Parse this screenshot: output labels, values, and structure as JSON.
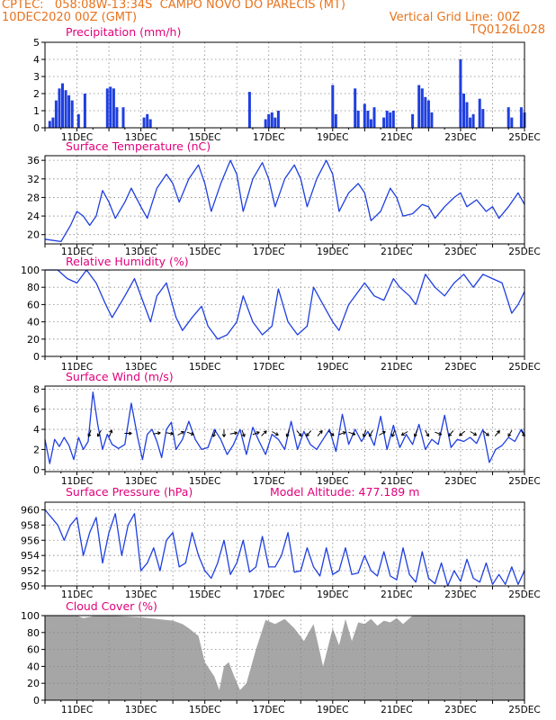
{
  "header": {
    "line1": "CPTEC:   058:08W-13:34S  CAMPO NOVO DO PARECIS (MT)",
    "line2_left": "10DEC2020 00Z (GMT)",
    "line2_right": "Vertical Grid Line: 00Z",
    "line3_right": "TQ0126L028"
  },
  "colors": {
    "header": "#e8731e",
    "title": "#e0007a",
    "series": "#1f3fe0",
    "cloud": "#a6a6a6",
    "arrow": "#000000"
  },
  "x_labels": [
    "11DEC",
    "13DEC",
    "15DEC",
    "17DEC",
    "19DEC",
    "21DEC",
    "23DEC",
    "25DEC"
  ],
  "chart_data": [
    {
      "id": "precip",
      "type": "bar",
      "title": "Precipitation (mm/h)",
      "x_unit": "days from 10DEC2020 00Z",
      "xlim": [
        0,
        15
      ],
      "ylim": [
        0,
        5
      ],
      "yticks": [
        0,
        1,
        2,
        3,
        4,
        5
      ],
      "x": [
        0.15,
        0.25,
        0.35,
        0.45,
        0.55,
        0.65,
        0.75,
        0.85,
        1.05,
        1.25,
        1.95,
        2.05,
        2.15,
        2.25,
        2.45,
        3.1,
        3.2,
        3.3,
        6.4,
        6.9,
        7.0,
        7.1,
        7.2,
        7.3,
        9.0,
        9.1,
        9.7,
        9.8,
        10.0,
        10.1,
        10.2,
        10.3,
        10.6,
        10.7,
        10.8,
        10.9,
        11.5,
        11.7,
        11.8,
        11.9,
        12.0,
        12.1,
        13.0,
        13.1,
        13.2,
        13.3,
        13.4,
        13.6,
        13.7,
        14.5,
        14.6,
        14.9,
        15.0
      ],
      "values": [
        0.4,
        0.6,
        1.6,
        2.3,
        2.6,
        2.2,
        1.9,
        1.6,
        0.8,
        2.0,
        2.3,
        2.4,
        2.3,
        1.2,
        1.2,
        0.6,
        0.8,
        0.5,
        2.1,
        0.5,
        0.8,
        0.9,
        0.6,
        1.0,
        2.5,
        0.8,
        2.3,
        1.0,
        1.4,
        1.0,
        0.5,
        1.2,
        0.6,
        1.0,
        0.9,
        1.0,
        0.8,
        2.5,
        2.3,
        1.8,
        1.6,
        0.9,
        4.0,
        2.0,
        1.5,
        0.6,
        0.8,
        1.7,
        1.1,
        1.2,
        0.6,
        1.2,
        0.9
      ]
    },
    {
      "id": "temp",
      "type": "line",
      "title": "Surface Temperature (nC)",
      "x_unit": "days from 10DEC2020 00Z",
      "xlim": [
        0,
        15
      ],
      "ylim": [
        18,
        37
      ],
      "yticks": [
        20,
        24,
        28,
        32,
        36
      ],
      "x": [
        0,
        0.5,
        0.8,
        1.0,
        1.2,
        1.4,
        1.6,
        1.8,
        2.0,
        2.2,
        2.5,
        2.7,
        3.0,
        3.2,
        3.5,
        3.8,
        4.0,
        4.2,
        4.5,
        4.8,
        5.0,
        5.2,
        5.5,
        5.8,
        6.0,
        6.2,
        6.5,
        6.8,
        7.0,
        7.2,
        7.5,
        7.8,
        8.0,
        8.2,
        8.5,
        8.8,
        9.0,
        9.2,
        9.5,
        9.8,
        10.0,
        10.2,
        10.5,
        10.8,
        11.0,
        11.2,
        11.5,
        11.8,
        12.0,
        12.2,
        12.5,
        12.8,
        13.0,
        13.2,
        13.5,
        13.8,
        14.0,
        14.2,
        14.5,
        14.8,
        15.0
      ],
      "values": [
        19,
        18.5,
        22,
        25,
        24,
        22,
        24,
        29.5,
        27,
        23.5,
        27,
        30,
        26,
        23.5,
        30,
        33,
        31,
        27,
        32,
        35,
        31,
        25,
        31,
        36,
        33,
        25,
        32,
        35.5,
        32,
        26,
        32,
        35,
        32,
        26,
        32,
        36,
        33,
        25,
        29,
        31,
        29,
        23,
        25,
        30,
        28,
        24,
        24.5,
        26.5,
        26,
        23.5,
        26,
        28,
        29,
        26,
        27.5,
        25,
        26,
        23.5,
        26,
        29,
        26.5
      ]
    },
    {
      "id": "rh",
      "type": "line",
      "title": "Relative Humidity (%)",
      "x_unit": "days from 10DEC2020 00Z",
      "xlim": [
        0,
        15
      ],
      "ylim": [
        0,
        100
      ],
      "yticks": [
        0,
        20,
        40,
        60,
        80,
        100
      ],
      "x": [
        0,
        0.4,
        0.7,
        1.0,
        1.3,
        1.6,
        1.9,
        2.1,
        2.5,
        2.8,
        3.1,
        3.3,
        3.5,
        3.8,
        4.1,
        4.3,
        4.6,
        4.9,
        5.1,
        5.4,
        5.7,
        6.0,
        6.2,
        6.5,
        6.8,
        7.1,
        7.3,
        7.6,
        7.9,
        8.2,
        8.4,
        8.7,
        9.0,
        9.2,
        9.5,
        9.8,
        10.0,
        10.3,
        10.6,
        10.9,
        11.1,
        11.4,
        11.6,
        11.9,
        12.2,
        12.5,
        12.8,
        13.1,
        13.4,
        13.7,
        14.0,
        14.3,
        14.6,
        14.8,
        15.0
      ],
      "values": [
        100,
        100,
        90,
        85,
        100,
        85,
        60,
        45,
        70,
        90,
        60,
        40,
        70,
        85,
        45,
        30,
        45,
        58,
        35,
        20,
        25,
        40,
        70,
        40,
        25,
        35,
        78,
        40,
        25,
        35,
        80,
        60,
        40,
        30,
        60,
        75,
        85,
        70,
        65,
        90,
        80,
        70,
        60,
        95,
        80,
        70,
        85,
        95,
        80,
        95,
        90,
        85,
        50,
        60,
        75
      ]
    },
    {
      "id": "wind",
      "type": "line",
      "title": "Surface Wind (m/s)",
      "x_unit": "days from 10DEC2020 00Z",
      "xlim": [
        0,
        15
      ],
      "ylim": [
        -0.2,
        8.3
      ],
      "yticks": [
        0,
        2,
        4,
        6,
        8
      ],
      "x": [
        0,
        0.15,
        0.3,
        0.45,
        0.6,
        0.75,
        0.9,
        1.05,
        1.2,
        1.35,
        1.5,
        1.65,
        1.8,
        1.95,
        2.1,
        2.3,
        2.5,
        2.7,
        2.9,
        3.05,
        3.2,
        3.35,
        3.5,
        3.65,
        3.8,
        3.95,
        4.1,
        4.3,
        4.5,
        4.7,
        4.9,
        5.1,
        5.3,
        5.5,
        5.7,
        5.9,
        6.1,
        6.3,
        6.5,
        6.7,
        6.9,
        7.1,
        7.3,
        7.5,
        7.7,
        7.9,
        8.1,
        8.3,
        8.5,
        8.7,
        8.9,
        9.1,
        9.3,
        9.5,
        9.7,
        9.9,
        10.1,
        10.3,
        10.5,
        10.7,
        10.9,
        11.1,
        11.3,
        11.5,
        11.7,
        11.9,
        12.1,
        12.3,
        12.5,
        12.7,
        12.9,
        13.1,
        13.3,
        13.5,
        13.7,
        13.9,
        14.1,
        14.3,
        14.5,
        14.7,
        14.9,
        15.0
      ],
      "values": [
        3.0,
        0.6,
        3.0,
        2.3,
        3.2,
        2.4,
        1.0,
        3.2,
        2.0,
        2.8,
        7.7,
        4.5,
        2.0,
        3.5,
        2.5,
        2.1,
        2.5,
        6.6,
        3.2,
        1.0,
        3.5,
        4.0,
        2.8,
        1.2,
        4.0,
        4.7,
        2.0,
        3.0,
        4.8,
        3.0,
        2.0,
        2.2,
        4.0,
        3.0,
        1.5,
        2.5,
        4.0,
        1.5,
        4.2,
        2.8,
        1.5,
        3.5,
        3.0,
        2.0,
        4.8,
        2.0,
        3.8,
        2.5,
        2.0,
        3.0,
        4.0,
        1.8,
        5.5,
        2.5,
        4.0,
        2.8,
        3.8,
        2.4,
        5.3,
        2.0,
        4.4,
        2.2,
        3.5,
        2.5,
        4.5,
        2.0,
        3.0,
        2.5,
        5.4,
        2.2,
        3.0,
        2.8,
        3.2,
        2.6,
        4.0,
        0.7,
        2.0,
        2.4,
        3.2,
        2.8,
        4.0,
        3.5
      ]
    },
    {
      "id": "pres",
      "type": "line",
      "title": "Surface Pressure (hPa)",
      "annotation": "Model Altitude: 477.189 m",
      "x_unit": "days from 10DEC2020 00Z",
      "xlim": [
        0,
        15
      ],
      "ylim": [
        950,
        961
      ],
      "yticks": [
        950,
        952,
        954,
        956,
        958,
        960
      ],
      "x": [
        0,
        0.2,
        0.4,
        0.6,
        0.8,
        1.0,
        1.2,
        1.4,
        1.6,
        1.8,
        2.0,
        2.2,
        2.4,
        2.6,
        2.8,
        3.0,
        3.2,
        3.4,
        3.6,
        3.8,
        4.0,
        4.2,
        4.4,
        4.6,
        4.8,
        5.0,
        5.2,
        5.4,
        5.6,
        5.8,
        6.0,
        6.2,
        6.4,
        6.6,
        6.8,
        7.0,
        7.2,
        7.4,
        7.6,
        7.8,
        8.0,
        8.2,
        8.4,
        8.6,
        8.8,
        9.0,
        9.2,
        9.4,
        9.6,
        9.8,
        10.0,
        10.2,
        10.4,
        10.6,
        10.8,
        11.0,
        11.2,
        11.4,
        11.6,
        11.8,
        12.0,
        12.2,
        12.4,
        12.6,
        12.8,
        13.0,
        13.2,
        13.4,
        13.6,
        13.8,
        14.0,
        14.2,
        14.4,
        14.6,
        14.8,
        15.0
      ],
      "values": [
        960,
        959,
        958,
        956,
        958,
        959,
        954,
        957,
        959,
        953,
        957,
        959.5,
        954,
        958,
        959.5,
        952,
        953,
        955,
        952,
        956,
        957,
        952.5,
        953,
        957,
        954,
        952,
        951,
        953,
        956,
        951.5,
        953,
        956,
        951.8,
        952.5,
        956.5,
        952.5,
        952.5,
        954,
        957,
        951.8,
        952,
        955,
        952.5,
        951.3,
        955,
        951.5,
        952,
        955,
        951.5,
        951.7,
        954,
        952,
        951.3,
        954.5,
        951.3,
        950.8,
        955,
        951.5,
        950.5,
        954.5,
        951,
        950.3,
        953,
        950,
        952,
        950.6,
        953.5,
        951,
        950.5,
        953,
        950.2,
        951.5,
        950.2,
        952.5,
        950.2,
        952
      ]
    },
    {
      "id": "cloud",
      "type": "area",
      "title": "Cloud Cover (%)",
      "x_unit": "days from 10DEC2020 00Z",
      "xlim": [
        0,
        15
      ],
      "ylim": [
        0,
        100
      ],
      "yticks": [
        0,
        20,
        40,
        60,
        80,
        100
      ],
      "x": [
        0,
        1.0,
        1.2,
        1.6,
        2.0,
        3.0,
        3.5,
        4.0,
        4.3,
        4.5,
        4.8,
        5.0,
        5.3,
        5.45,
        5.6,
        5.75,
        5.9,
        6.1,
        6.3,
        6.6,
        6.9,
        7.2,
        7.5,
        7.8,
        8.1,
        8.4,
        8.7,
        9.0,
        9.2,
        9.4,
        9.6,
        9.8,
        10.0,
        10.2,
        10.4,
        10.6,
        10.8,
        11.0,
        11.2,
        11.5,
        15.0
      ],
      "values": [
        100,
        100,
        97,
        100,
        100,
        98,
        96,
        94,
        90,
        85,
        76,
        45,
        28,
        12,
        40,
        45,
        30,
        12,
        20,
        60,
        95,
        90,
        96,
        85,
        70,
        90,
        40,
        85,
        65,
        96,
        70,
        92,
        90,
        96,
        88,
        94,
        92,
        97,
        90,
        100,
        100
      ]
    }
  ],
  "wind_arrows": {
    "x": [
      1.4,
      1.7,
      2.05,
      2.6,
      3.5,
      3.9,
      4.25,
      4.55,
      5.3,
      5.6,
      5.9,
      6.2,
      6.6,
      6.85,
      7.2,
      7.6,
      7.95,
      8.25,
      8.6,
      8.95,
      9.3,
      9.6,
      10.0,
      10.2,
      10.55,
      10.9,
      11.25,
      11.6,
      11.95,
      12.3,
      12.7,
      13.05,
      13.4,
      13.8,
      14.15,
      14.55,
      14.95
    ],
    "direction_deg": [
      200,
      210,
      20,
      90,
      80,
      100,
      60,
      110,
      200,
      180,
      80,
      160,
      70,
      45,
      120,
      200,
      140,
      220,
      40,
      130,
      70,
      110,
      200,
      210,
      60,
      200,
      240,
      200,
      150,
      110,
      220,
      230,
      120,
      130,
      40,
      210,
      150
    ]
  }
}
